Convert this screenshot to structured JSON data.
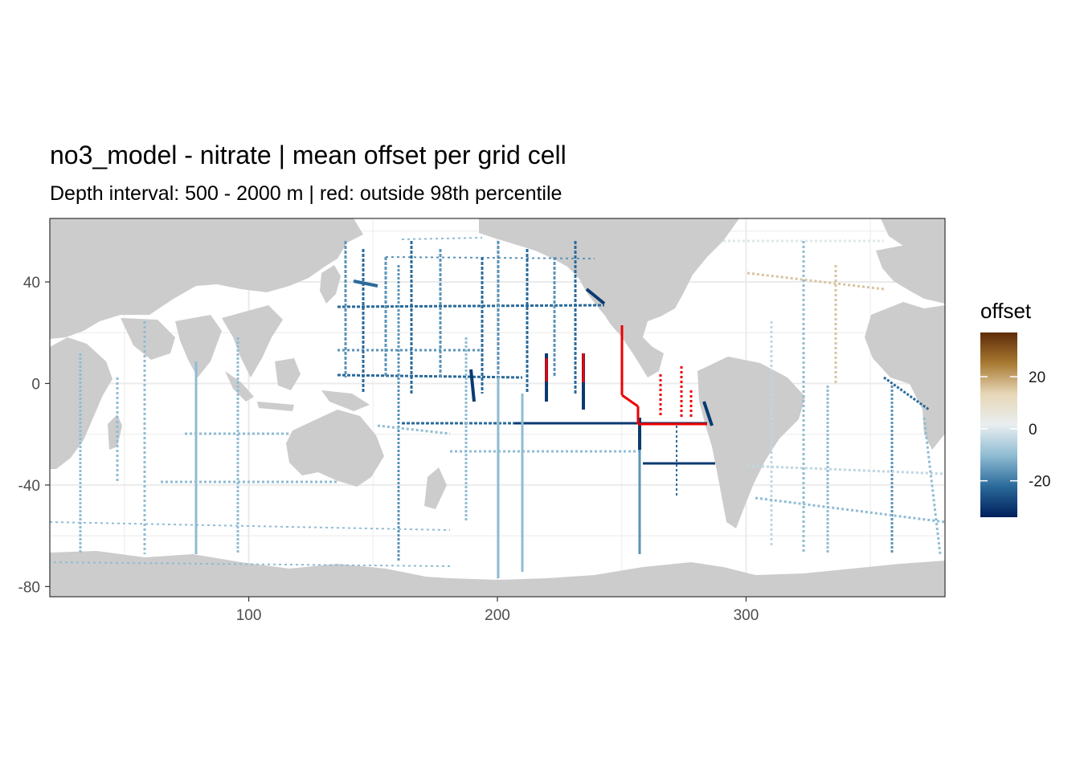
{
  "title": "no3_model - nitrate  | mean offset per grid cell",
  "subtitle": "Depth interval: 500 - 2000 m | red: outside 98th percentile",
  "colors": {
    "land": "#cccccc",
    "ocean": "#ffffff",
    "grid": "#ebebeb",
    "panel_border": "#333333",
    "outlier": "#ee0000",
    "scale": [
      "#001f5c",
      "#2a6a9a",
      "#8fbcd3",
      "#e9eef0",
      "#e7d7b8",
      "#a87a32",
      "#5e2b08"
    ]
  },
  "chart_data": {
    "type": "heatmap",
    "x_ticks": [
      {
        "value": 100,
        "label": "100"
      },
      {
        "value": 200,
        "label": "200"
      },
      {
        "value": 300,
        "label": "300"
      }
    ],
    "y_ticks": [
      {
        "value": 40,
        "label": "40"
      },
      {
        "value": 0,
        "label": "0"
      },
      {
        "value": -40,
        "label": "-40"
      },
      {
        "value": -80,
        "label": "-80"
      }
    ],
    "xlim": [
      20,
      380
    ],
    "ylim": [
      -84,
      65
    ],
    "legend": {
      "title": "offset",
      "position": "right",
      "range": [
        -34,
        37
      ],
      "ticks": [
        {
          "value": 20,
          "label": "20"
        },
        {
          "value": 0,
          "label": "0"
        },
        {
          "value": -20,
          "label": "-20"
        }
      ]
    },
    "grid": true
  }
}
